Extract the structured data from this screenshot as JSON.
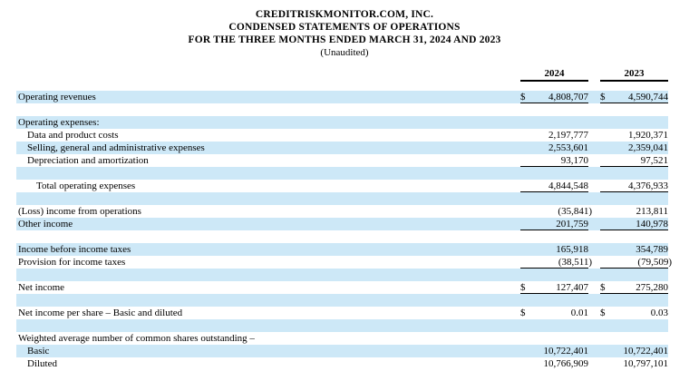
{
  "header": {
    "company": "CREDITRISKMONITOR.COM, INC.",
    "statement_title": "CONDENSED STATEMENTS OF OPERATIONS",
    "period": "FOR THE THREE MONTHS ENDED MARCH 31, 2024 AND 2023",
    "note": "(Unaudited)"
  },
  "columns": [
    "2024",
    "2023"
  ],
  "style": {
    "row_shade_color": "#cde8f7",
    "rule_color": "#000000"
  },
  "rows": [
    {
      "label": "Operating revenues",
      "indent": 0,
      "shade": true,
      "dollar": true,
      "v2024": "4,808,707",
      "v2023": "4,590,744",
      "underline": true
    },
    {
      "label": "",
      "indent": 0,
      "shade": false,
      "dollar": false,
      "v2024": "",
      "v2023": "",
      "underline": false
    },
    {
      "label": "Operating expenses:",
      "indent": 0,
      "shade": true,
      "dollar": false,
      "v2024": "",
      "v2023": "",
      "underline": false
    },
    {
      "label": "Data and product costs",
      "indent": 1,
      "shade": false,
      "dollar": false,
      "v2024": "2,197,777",
      "v2023": "1,920,371",
      "underline": false
    },
    {
      "label": "Selling, general and administrative expenses",
      "indent": 1,
      "shade": true,
      "dollar": false,
      "v2024": "2,553,601",
      "v2023": "2,359,041",
      "underline": false
    },
    {
      "label": "Depreciation and amortization",
      "indent": 1,
      "shade": false,
      "dollar": false,
      "v2024": "93,170",
      "v2023": "97,521",
      "underline": true
    },
    {
      "label": "",
      "indent": 0,
      "shade": true,
      "dollar": false,
      "v2024": "",
      "v2023": "",
      "underline": false
    },
    {
      "label": "Total operating expenses",
      "indent": 2,
      "shade": false,
      "dollar": false,
      "v2024": "4,844,548",
      "v2023": "4,376,933",
      "underline": true
    },
    {
      "label": "",
      "indent": 0,
      "shade": true,
      "dollar": false,
      "v2024": "",
      "v2023": "",
      "underline": false
    },
    {
      "label": "(Loss) income from operations",
      "indent": 0,
      "shade": false,
      "dollar": false,
      "v2024": "(35,841)",
      "v2023": "213,811",
      "underline": false
    },
    {
      "label": "Other income",
      "indent": 0,
      "shade": true,
      "dollar": false,
      "v2024": "201,759",
      "v2023": "140,978",
      "underline": true
    },
    {
      "label": "",
      "indent": 0,
      "shade": false,
      "dollar": false,
      "v2024": "",
      "v2023": "",
      "underline": false
    },
    {
      "label": "Income before income taxes",
      "indent": 0,
      "shade": true,
      "dollar": false,
      "v2024": "165,918",
      "v2023": "354,789",
      "underline": false
    },
    {
      "label": "Provision for income taxes",
      "indent": 0,
      "shade": false,
      "dollar": false,
      "v2024": "(38,511)",
      "v2023": "(79,509)",
      "underline": true
    },
    {
      "label": "",
      "indent": 0,
      "shade": true,
      "dollar": false,
      "v2024": "",
      "v2023": "",
      "underline": false
    },
    {
      "label": "Net income",
      "indent": 0,
      "shade": false,
      "dollar": true,
      "v2024": "127,407",
      "v2023": "275,280",
      "underline": true
    },
    {
      "label": "",
      "indent": 0,
      "shade": true,
      "dollar": false,
      "v2024": "",
      "v2023": "",
      "underline": false
    },
    {
      "label": "Net income per share – Basic and diluted",
      "indent": 0,
      "shade": false,
      "dollar": true,
      "v2024": "0.01",
      "v2023": "0.03",
      "underline": false
    },
    {
      "label": "",
      "indent": 0,
      "shade": true,
      "dollar": false,
      "v2024": "",
      "v2023": "",
      "underline": false
    },
    {
      "label": "Weighted average number of common shares outstanding –",
      "indent": 0,
      "shade": false,
      "dollar": false,
      "v2024": "",
      "v2023": "",
      "underline": false
    },
    {
      "label": "Basic",
      "indent": 1,
      "shade": true,
      "dollar": false,
      "v2024": "10,722,401",
      "v2023": "10,722,401",
      "underline": false
    },
    {
      "label": "Diluted",
      "indent": 1,
      "shade": false,
      "dollar": false,
      "v2024": "10,766,909",
      "v2023": "10,797,101",
      "underline": false
    }
  ]
}
